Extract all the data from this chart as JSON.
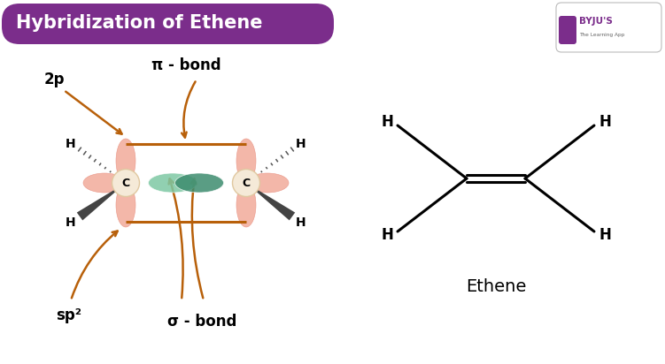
{
  "title": "Hybridization of Ethene",
  "title_bg": "#7B2D8B",
  "title_color": "white",
  "background_color": "white",
  "arrow_color": "#B8600A",
  "orbital_pink": "#F2AFA0",
  "orbital_green_light": "#7EC8A4",
  "orbital_green_dark": "#3D8C6E",
  "carbon_circle_color": "#F5EAD8",
  "carbon_border": "#E0C8A0",
  "bond_line_color": "#B8600A",
  "ethene_line_color": "black",
  "labels": {
    "two_p": "2p",
    "pi_bond": "π - bond",
    "sigma_bond": "σ - bond",
    "sp2": "sp²",
    "carbon": "C",
    "hydrogen": "H",
    "ethene": "Ethene"
  }
}
